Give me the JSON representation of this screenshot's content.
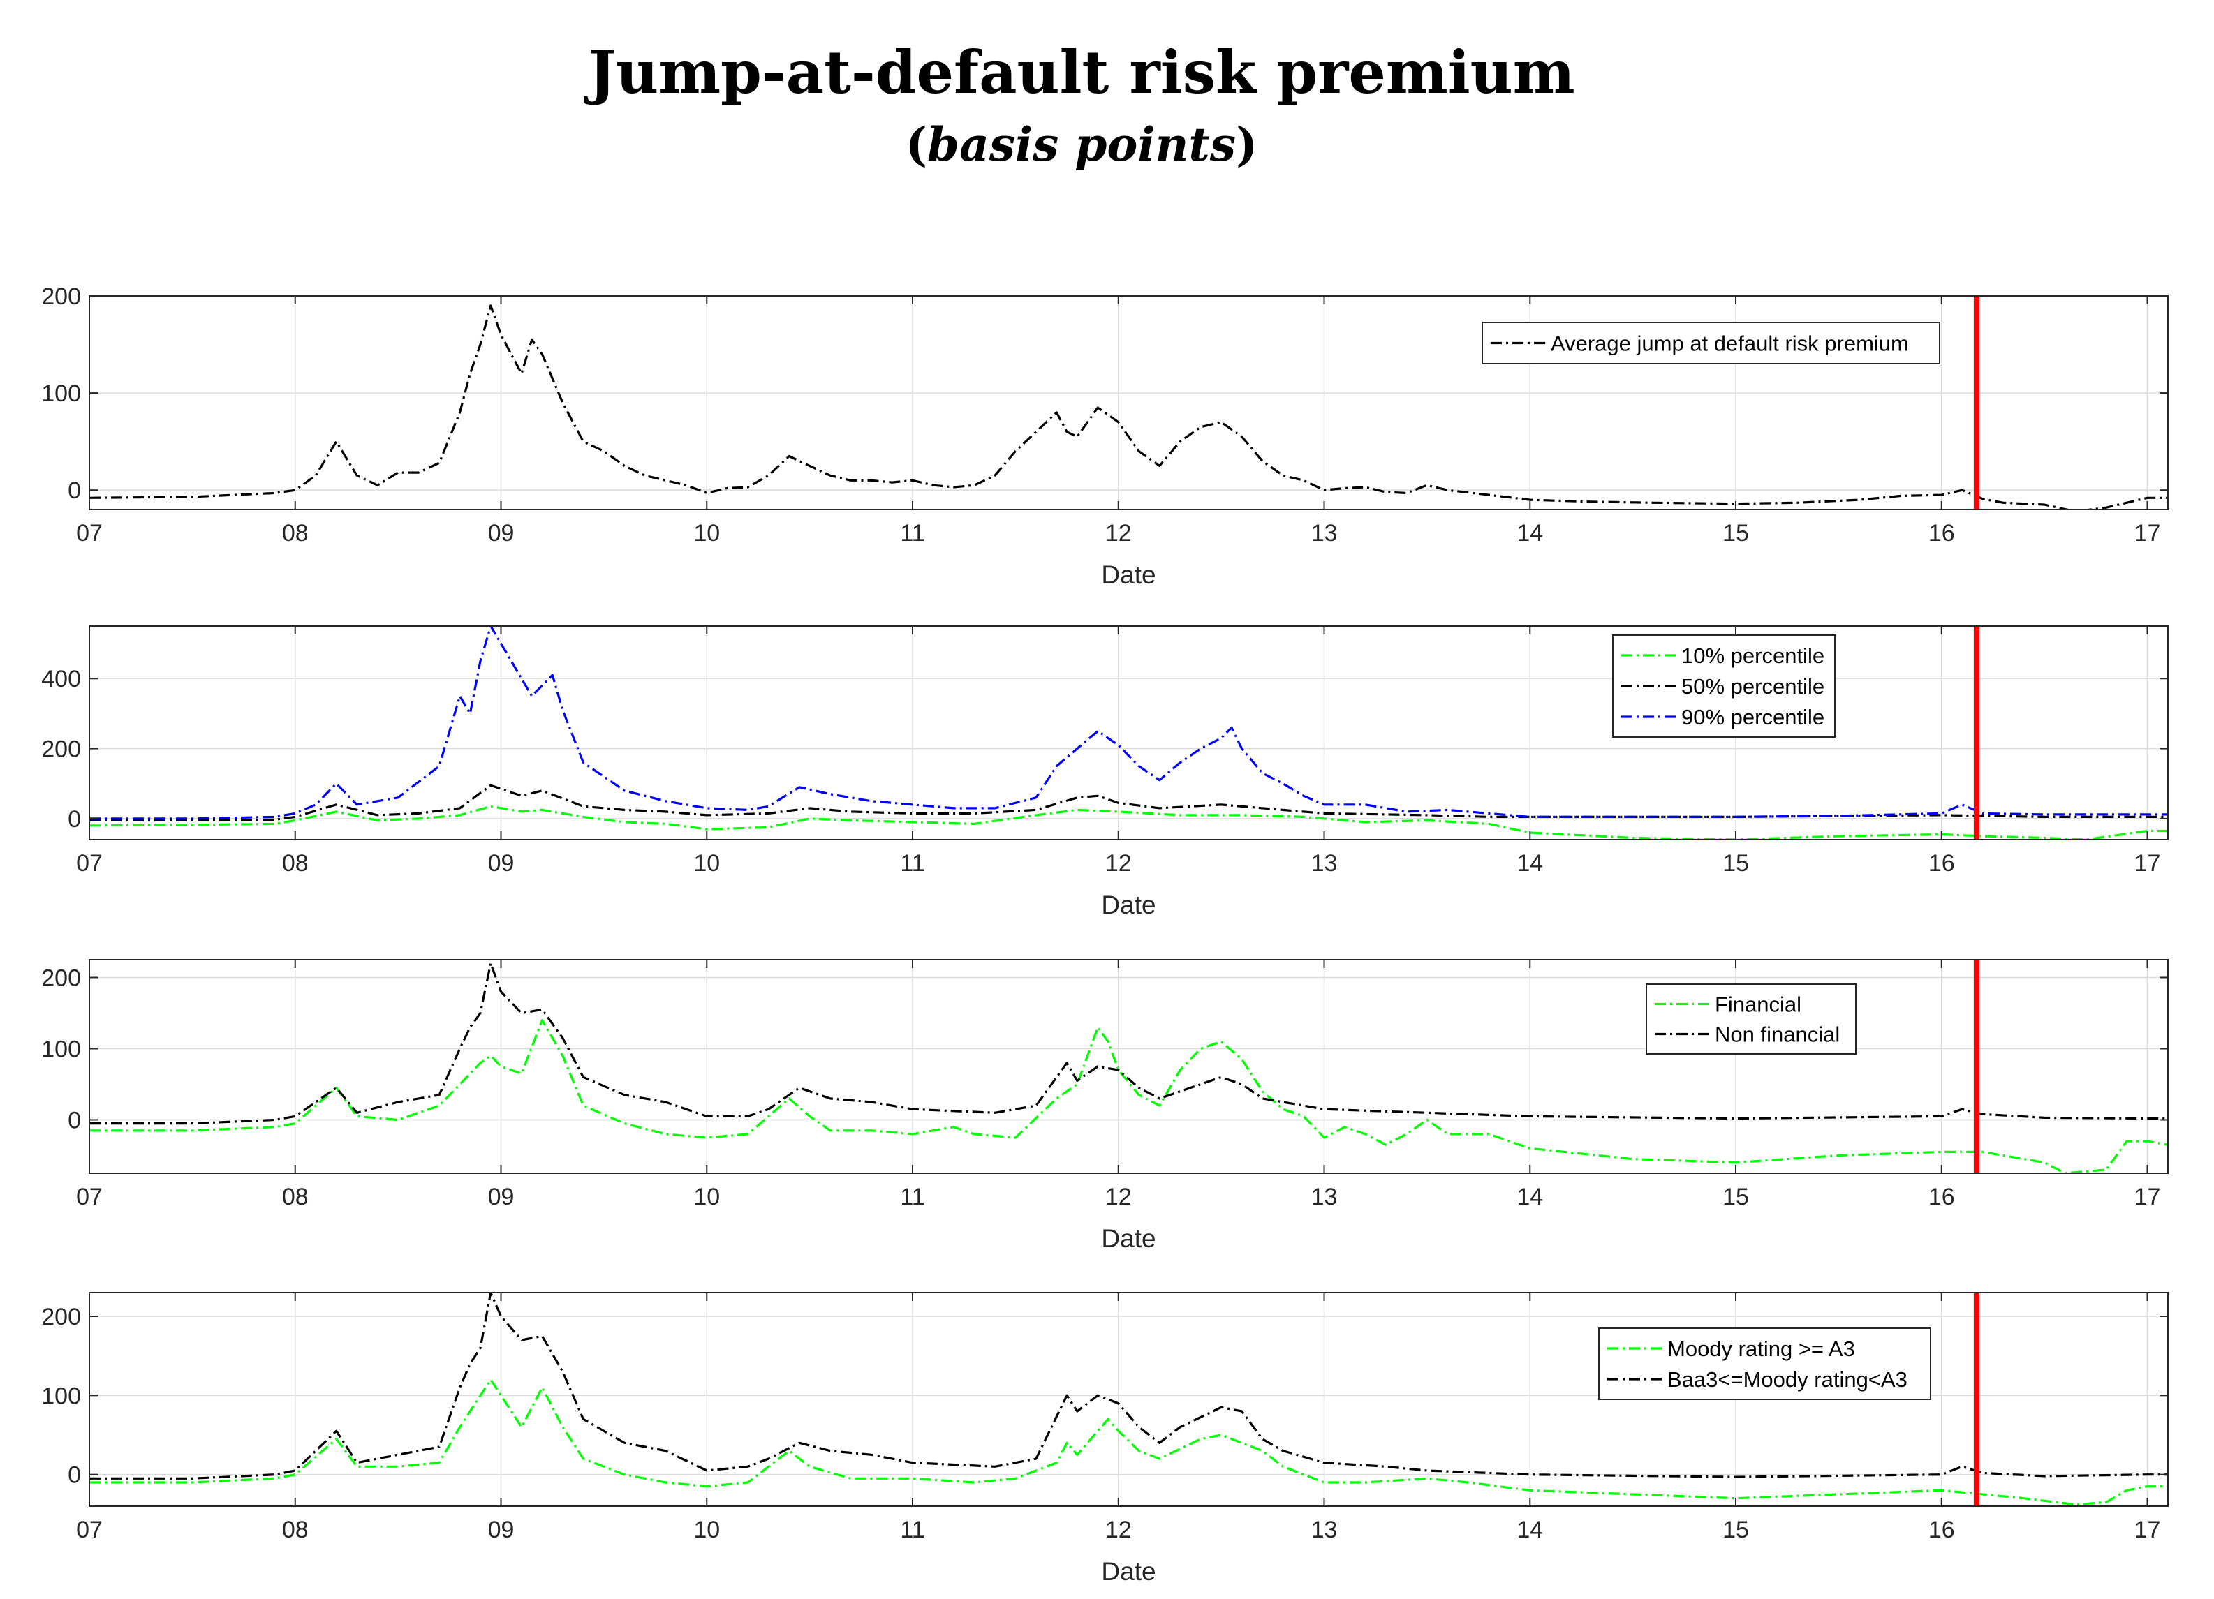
{
  "title": "Jump-at-default risk premium",
  "subtitle_open": "(",
  "subtitle_italic": "basis points",
  "subtitle_close": ")",
  "colors": {
    "black": "#000000",
    "green": "#00ff00",
    "blue": "#0000ff",
    "red": "#ff0000"
  },
  "chart_data": [
    {
      "type": "line",
      "xlabel": "Date",
      "ylabel": "",
      "xlim": [
        7,
        17.1
      ],
      "ylim": [
        -20,
        200
      ],
      "xticks": [
        7,
        8,
        9,
        10,
        11,
        12,
        13,
        14,
        15,
        16,
        17
      ],
      "xtick_labels": [
        "07",
        "08",
        "09",
        "10",
        "11",
        "12",
        "13",
        "14",
        "15",
        "16",
        "17"
      ],
      "yticks": [
        0,
        100,
        200
      ],
      "ytick_labels": [
        "0",
        "100",
        "200"
      ],
      "grid": true,
      "legend_position": "top-right",
      "vline": {
        "x": 16.17,
        "color": "#ff0000"
      },
      "series": [
        {
          "name": "Average jump at default risk premium",
          "color": "#000000",
          "x": [
            7.0,
            7.5,
            7.9,
            8.0,
            8.1,
            8.2,
            8.3,
            8.4,
            8.5,
            8.6,
            8.7,
            8.8,
            8.85,
            8.9,
            8.95,
            9.0,
            9.05,
            9.1,
            9.15,
            9.2,
            9.3,
            9.4,
            9.5,
            9.6,
            9.7,
            9.8,
            9.9,
            10.0,
            10.1,
            10.2,
            10.3,
            10.4,
            10.5,
            10.6,
            10.7,
            10.8,
            10.9,
            11.0,
            11.1,
            11.2,
            11.3,
            11.4,
            11.5,
            11.6,
            11.7,
            11.75,
            11.8,
            11.9,
            12.0,
            12.1,
            12.2,
            12.3,
            12.4,
            12.5,
            12.6,
            12.7,
            12.8,
            12.9,
            13.0,
            13.1,
            13.2,
            13.3,
            13.4,
            13.5,
            13.6,
            13.8,
            14.0,
            14.3,
            14.6,
            15.0,
            15.3,
            15.6,
            15.8,
            16.0,
            16.1,
            16.2,
            16.3,
            16.5,
            16.65,
            16.8,
            17.0,
            17.1
          ],
          "values": [
            -8,
            -7,
            -3,
            0,
            15,
            50,
            15,
            5,
            18,
            18,
            28,
            80,
            120,
            150,
            190,
            160,
            140,
            120,
            155,
            140,
            90,
            50,
            40,
            25,
            15,
            10,
            5,
            -3,
            2,
            3,
            15,
            35,
            25,
            15,
            10,
            10,
            8,
            10,
            5,
            3,
            5,
            15,
            40,
            60,
            80,
            60,
            55,
            85,
            70,
            40,
            25,
            50,
            65,
            70,
            55,
            30,
            15,
            10,
            0,
            2,
            3,
            -2,
            -3,
            5,
            0,
            -5,
            -10,
            -12,
            -13,
            -14,
            -13,
            -10,
            -6,
            -5,
            0,
            -9,
            -13,
            -15,
            -22,
            -18,
            -8,
            -8
          ]
        }
      ]
    },
    {
      "type": "line",
      "xlabel": "Date",
      "ylabel": "",
      "xlim": [
        7,
        17.1
      ],
      "ylim": [
        -60,
        550
      ],
      "xticks": [
        7,
        8,
        9,
        10,
        11,
        12,
        13,
        14,
        15,
        16,
        17
      ],
      "xtick_labels": [
        "07",
        "08",
        "09",
        "10",
        "11",
        "12",
        "13",
        "14",
        "15",
        "16",
        "17"
      ],
      "yticks": [
        0,
        200,
        400
      ],
      "ytick_labels": [
        "0",
        "200",
        "400"
      ],
      "grid": true,
      "legend_position": "top-right",
      "vline": {
        "x": 16.17,
        "color": "#ff0000"
      },
      "series": [
        {
          "name": "10% percentile",
          "color": "#00ff00",
          "x": [
            7.0,
            7.5,
            7.9,
            8.0,
            8.2,
            8.4,
            8.6,
            8.8,
            8.95,
            9.1,
            9.2,
            9.4,
            9.6,
            9.8,
            10.0,
            10.3,
            10.5,
            10.7,
            11.0,
            11.3,
            11.6,
            11.8,
            12.0,
            12.3,
            12.6,
            12.9,
            13.2,
            13.5,
            13.8,
            14.0,
            14.5,
            15.0,
            15.5,
            16.0,
            16.2,
            16.5,
            16.7,
            17.0,
            17.1
          ],
          "values": [
            -20,
            -18,
            -15,
            -5,
            20,
            -5,
            0,
            10,
            35,
            20,
            25,
            5,
            -10,
            -15,
            -30,
            -25,
            0,
            -5,
            -10,
            -15,
            10,
            25,
            20,
            10,
            10,
            5,
            -10,
            -5,
            -15,
            -40,
            -55,
            -60,
            -50,
            -45,
            -50,
            -55,
            -60,
            -35,
            -35
          ]
        },
        {
          "name": "50% percentile",
          "color": "#000000",
          "x": [
            7.0,
            7.5,
            7.9,
            8.0,
            8.2,
            8.4,
            8.6,
            8.8,
            8.95,
            9.1,
            9.2,
            9.4,
            9.6,
            9.8,
            10.0,
            10.3,
            10.5,
            10.7,
            11.0,
            11.3,
            11.6,
            11.8,
            11.9,
            12.0,
            12.2,
            12.5,
            12.8,
            13.0,
            13.5,
            13.8,
            14.0,
            15.0,
            16.0,
            16.2,
            16.5,
            17.0,
            17.1
          ],
          "values": [
            -5,
            -5,
            -3,
            5,
            40,
            10,
            15,
            30,
            95,
            65,
            80,
            35,
            25,
            20,
            10,
            15,
            30,
            20,
            15,
            15,
            25,
            60,
            65,
            45,
            30,
            40,
            25,
            15,
            10,
            5,
            5,
            5,
            10,
            8,
            5,
            5,
            5
          ]
        },
        {
          "name": "90% percentile",
          "color": "#0000ff",
          "x": [
            7.0,
            7.5,
            7.9,
            8.0,
            8.1,
            8.2,
            8.3,
            8.5,
            8.7,
            8.8,
            8.85,
            8.9,
            8.95,
            9.0,
            9.1,
            9.15,
            9.2,
            9.25,
            9.3,
            9.4,
            9.5,
            9.6,
            9.8,
            10.0,
            10.2,
            10.3,
            10.45,
            10.6,
            10.8,
            11.0,
            11.2,
            11.4,
            11.6,
            11.7,
            11.8,
            11.9,
            12.0,
            12.1,
            12.2,
            12.3,
            12.4,
            12.5,
            12.55,
            12.6,
            12.7,
            12.8,
            12.9,
            13.0,
            13.2,
            13.4,
            13.6,
            13.8,
            14.0,
            15.0,
            15.5,
            16.0,
            16.1,
            16.2,
            16.5,
            17.0,
            17.1
          ],
          "values": [
            0,
            0,
            5,
            15,
            40,
            100,
            40,
            60,
            150,
            350,
            300,
            450,
            550,
            500,
            400,
            350,
            380,
            410,
            310,
            160,
            120,
            80,
            50,
            30,
            25,
            35,
            90,
            70,
            50,
            40,
            30,
            30,
            60,
            150,
            200,
            250,
            210,
            150,
            110,
            160,
            200,
            230,
            260,
            200,
            130,
            100,
            65,
            40,
            40,
            20,
            25,
            15,
            5,
            5,
            8,
            15,
            40,
            15,
            12,
            12,
            12
          ]
        }
      ]
    },
    {
      "type": "line",
      "xlabel": "Date",
      "ylabel": "",
      "xlim": [
        7,
        17.1
      ],
      "ylim": [
        -75,
        225
      ],
      "xticks": [
        7,
        8,
        9,
        10,
        11,
        12,
        13,
        14,
        15,
        16,
        17
      ],
      "xtick_labels": [
        "07",
        "08",
        "09",
        "10",
        "11",
        "12",
        "13",
        "14",
        "15",
        "16",
        "17"
      ],
      "yticks": [
        0,
        100,
        200
      ],
      "ytick_labels": [
        "0",
        "100",
        "200"
      ],
      "grid": true,
      "legend_position": "top-right",
      "vline": {
        "x": 16.17,
        "color": "#ff0000"
      },
      "series": [
        {
          "name": "Financial",
          "color": "#00ff00",
          "x": [
            7.0,
            7.5,
            7.9,
            8.0,
            8.2,
            8.3,
            8.5,
            8.7,
            8.8,
            8.9,
            8.95,
            9.0,
            9.1,
            9.2,
            9.3,
            9.4,
            9.6,
            9.8,
            10.0,
            10.2,
            10.4,
            10.5,
            10.6,
            10.8,
            11.0,
            11.2,
            11.3,
            11.5,
            11.7,
            11.8,
            11.9,
            11.95,
            12.0,
            12.1,
            12.2,
            12.3,
            12.4,
            12.5,
            12.6,
            12.7,
            12.8,
            12.9,
            13.0,
            13.1,
            13.2,
            13.3,
            13.4,
            13.5,
            13.6,
            13.8,
            14.0,
            14.5,
            15.0,
            15.5,
            16.0,
            16.2,
            16.4,
            16.5,
            16.6,
            16.8,
            16.9,
            17.0,
            17.1
          ],
          "values": [
            -15,
            -15,
            -10,
            -5,
            45,
            5,
            0,
            20,
            50,
            80,
            90,
            75,
            65,
            140,
            90,
            20,
            -5,
            -20,
            -25,
            -20,
            30,
            5,
            -15,
            -15,
            -20,
            -10,
            -20,
            -25,
            30,
            50,
            130,
            110,
            70,
            35,
            20,
            70,
            100,
            110,
            85,
            40,
            15,
            5,
            -25,
            -10,
            -20,
            -35,
            -20,
            0,
            -20,
            -20,
            -40,
            -55,
            -60,
            -50,
            -45,
            -45,
            -55,
            -60,
            -75,
            -70,
            -30,
            -30,
            -35
          ]
        },
        {
          "name": "Non financial",
          "color": "#000000",
          "x": [
            7.0,
            7.5,
            7.9,
            8.0,
            8.2,
            8.3,
            8.5,
            8.7,
            8.8,
            8.85,
            8.9,
            8.95,
            9.0,
            9.1,
            9.2,
            9.3,
            9.4,
            9.6,
            9.8,
            10.0,
            10.2,
            10.3,
            10.45,
            10.6,
            10.8,
            11.0,
            11.4,
            11.6,
            11.75,
            11.8,
            11.9,
            12.0,
            12.1,
            12.2,
            12.3,
            12.5,
            12.6,
            12.7,
            12.8,
            13.0,
            13.5,
            14.0,
            15.0,
            16.0,
            16.1,
            16.2,
            16.5,
            17.0,
            17.1
          ],
          "values": [
            -5,
            -5,
            0,
            5,
            45,
            10,
            25,
            35,
            100,
            130,
            150,
            220,
            180,
            150,
            155,
            115,
            60,
            35,
            25,
            5,
            5,
            15,
            45,
            30,
            25,
            15,
            10,
            20,
            80,
            55,
            75,
            70,
            45,
            30,
            40,
            60,
            50,
            30,
            25,
            15,
            10,
            5,
            2,
            5,
            15,
            8,
            3,
            2,
            2
          ]
        }
      ]
    },
    {
      "type": "line",
      "xlabel": "Date",
      "ylabel": "",
      "xlim": [
        7,
        17.1
      ],
      "ylim": [
        -40,
        230
      ],
      "xticks": [
        7,
        8,
        9,
        10,
        11,
        12,
        13,
        14,
        15,
        16,
        17
      ],
      "xtick_labels": [
        "07",
        "08",
        "09",
        "10",
        "11",
        "12",
        "13",
        "14",
        "15",
        "16",
        "17"
      ],
      "yticks": [
        0,
        100,
        200
      ],
      "ytick_labels": [
        "0",
        "100",
        "200"
      ],
      "grid": true,
      "legend_position": "top-right",
      "vline": {
        "x": 16.17,
        "color": "#ff0000"
      },
      "series": [
        {
          "name": "Moody rating >= A3",
          "color": "#00ff00",
          "x": [
            7.0,
            7.5,
            7.9,
            8.0,
            8.2,
            8.3,
            8.5,
            8.7,
            8.8,
            8.85,
            8.95,
            9.0,
            9.1,
            9.2,
            9.3,
            9.4,
            9.6,
            9.8,
            10.0,
            10.2,
            10.4,
            10.5,
            10.7,
            11.0,
            11.3,
            11.5,
            11.7,
            11.75,
            11.8,
            11.9,
            11.95,
            12.0,
            12.1,
            12.2,
            12.4,
            12.5,
            12.7,
            12.8,
            13.0,
            13.2,
            13.5,
            13.7,
            14.0,
            14.5,
            15.0,
            15.5,
            16.0,
            16.2,
            16.4,
            16.65,
            16.8,
            16.9,
            17.0,
            17.1
          ],
          "values": [
            -10,
            -10,
            -5,
            0,
            45,
            10,
            10,
            15,
            60,
            80,
            120,
            100,
            60,
            110,
            60,
            20,
            0,
            -10,
            -15,
            -10,
            30,
            10,
            -5,
            -5,
            -10,
            -5,
            15,
            40,
            25,
            55,
            70,
            55,
            30,
            20,
            45,
            50,
            30,
            10,
            -10,
            -10,
            -5,
            -10,
            -20,
            -25,
            -30,
            -25,
            -20,
            -25,
            -30,
            -38,
            -35,
            -20,
            -15,
            -15
          ]
        },
        {
          "name": "Baa3<=Moody rating<A3",
          "color": "#000000",
          "x": [
            7.0,
            7.5,
            7.9,
            8.0,
            8.2,
            8.3,
            8.5,
            8.7,
            8.8,
            8.85,
            8.9,
            8.95,
            9.0,
            9.1,
            9.2,
            9.3,
            9.4,
            9.6,
            9.8,
            10.0,
            10.2,
            10.3,
            10.45,
            10.6,
            10.8,
            11.0,
            11.4,
            11.6,
            11.75,
            11.8,
            11.9,
            12.0,
            12.1,
            12.2,
            12.3,
            12.5,
            12.6,
            12.7,
            12.8,
            13.0,
            13.3,
            13.5,
            14.0,
            15.0,
            16.0,
            16.1,
            16.2,
            16.5,
            17.0,
            17.1
          ],
          "values": [
            -5,
            -5,
            0,
            5,
            55,
            15,
            25,
            35,
            110,
            140,
            160,
            230,
            200,
            170,
            175,
            130,
            70,
            40,
            30,
            5,
            10,
            20,
            40,
            30,
            25,
            15,
            10,
            20,
            100,
            80,
            100,
            90,
            60,
            40,
            60,
            85,
            80,
            45,
            30,
            15,
            10,
            5,
            0,
            -3,
            0,
            10,
            2,
            -2,
            0,
            0
          ]
        }
      ]
    }
  ]
}
